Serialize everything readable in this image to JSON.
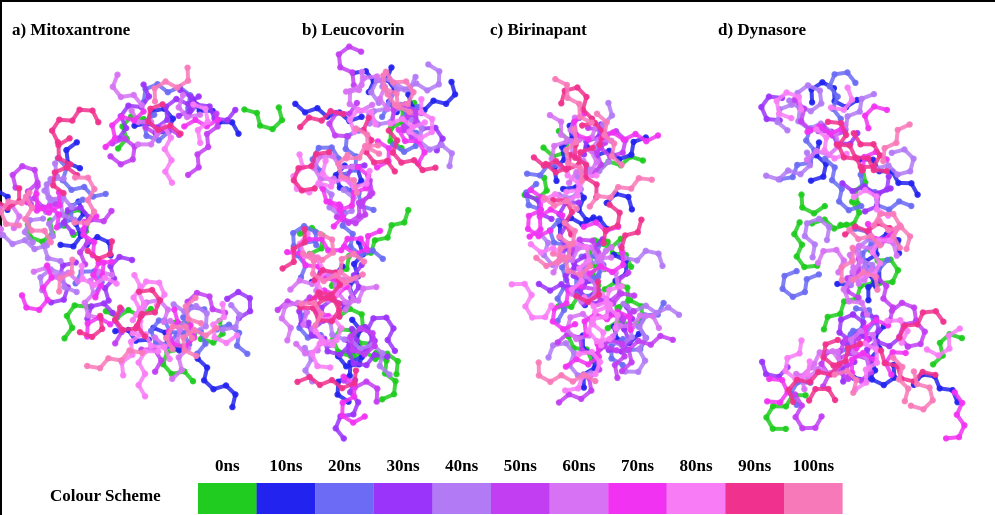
{
  "panels": [
    {
      "label": "a) Mitoxantrone"
    },
    {
      "label": "b) Leucovorin"
    },
    {
      "label": "c) Birinapant"
    },
    {
      "label": "d) Dynasore"
    }
  ],
  "legend": {
    "title": "Colour Scheme",
    "items": [
      {
        "label": "0ns",
        "color": "#1fcc1f"
      },
      {
        "label": "10ns",
        "color": "#2323ef"
      },
      {
        "label": "20ns",
        "color": "#6b6bf5"
      },
      {
        "label": "30ns",
        "color": "#9b34fb"
      },
      {
        "label": "40ns",
        "color": "#b37af6"
      },
      {
        "label": "50ns",
        "color": "#c23ef2"
      },
      {
        "label": "60ns",
        "color": "#d672f3"
      },
      {
        "label": "70ns",
        "color": "#f232f2"
      },
      {
        "label": "80ns",
        "color": "#f87cf6"
      },
      {
        "label": "90ns",
        "color": "#f0318d"
      },
      {
        "label": "100ns",
        "color": "#f879b9"
      }
    ]
  }
}
